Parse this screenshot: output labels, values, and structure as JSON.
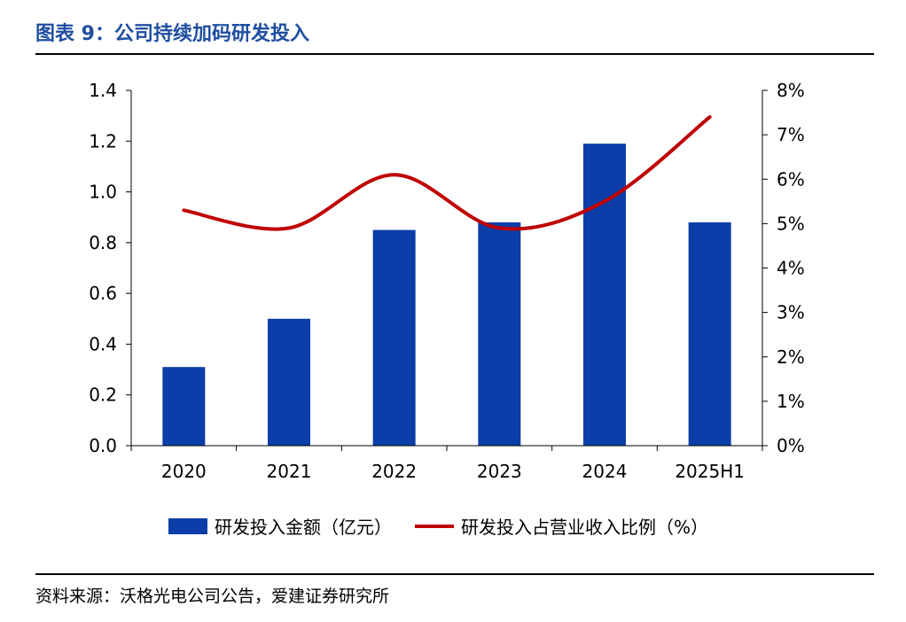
{
  "header": {
    "title": "图表 9：公司持续加码研发投入"
  },
  "footer": {
    "source": "资料来源：沃格光电公司公告，爱建证券研究所"
  },
  "colors": {
    "bar": "#0b3ea8",
    "line": "#c00000",
    "title": "#1f4ea1"
  },
  "chart_data": {
    "type": "bar",
    "categories": [
      "2020",
      "2021",
      "2022",
      "2023",
      "2024",
      "2025H1"
    ],
    "series": [
      {
        "name": "研发投入金额（亿元）",
        "type": "bar",
        "axis": "left",
        "values": [
          0.31,
          0.5,
          0.85,
          0.88,
          1.19,
          0.88
        ]
      },
      {
        "name": "研发投入占营业收入比例（%）",
        "type": "line",
        "axis": "right",
        "smooth": true,
        "values": [
          5.3,
          4.9,
          6.1,
          4.9,
          5.5,
          7.4
        ]
      }
    ],
    "y_left": {
      "min": 0,
      "max": 1.4,
      "ticks": [
        "0.0",
        "0.2",
        "0.4",
        "0.6",
        "0.8",
        "1.0",
        "1.2",
        "1.4"
      ]
    },
    "y_right": {
      "min": 0,
      "max": 8,
      "ticks": [
        "0%",
        "1%",
        "2%",
        "3%",
        "4%",
        "5%",
        "6%",
        "7%",
        "8%"
      ]
    },
    "legend_position": "bottom-center",
    "grid": false
  }
}
